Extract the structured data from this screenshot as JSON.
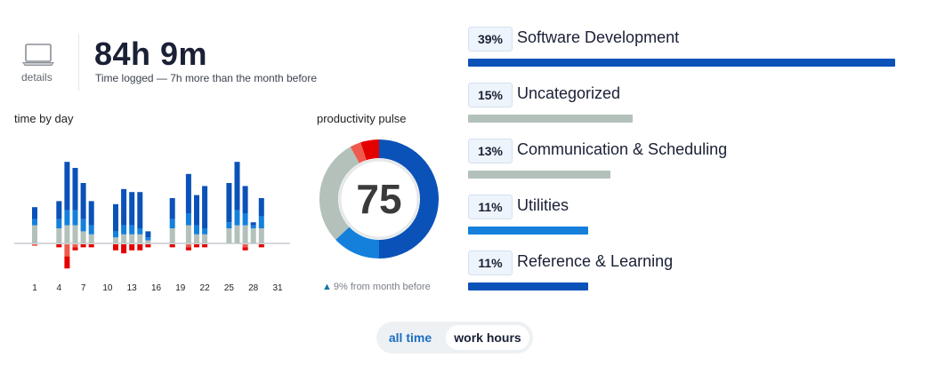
{
  "header": {
    "details_label": "details",
    "total_time": "84h 9m",
    "time_subtitle": "Time logged — 7h more than the month before"
  },
  "day_chart": {
    "title": "time by day",
    "x_labels": [
      "1",
      "4",
      "7",
      "10",
      "13",
      "16",
      "19",
      "22",
      "25",
      "28",
      "31"
    ]
  },
  "pulse": {
    "title": "productivity pulse",
    "score": "75",
    "trend_text": "9% from month before"
  },
  "categories": [
    {
      "percent": "39%",
      "name": "Software Development",
      "value": 39,
      "color": "#0a52b8"
    },
    {
      "percent": "15%",
      "name": "Uncategorized",
      "value": 15,
      "color": "#b3c1ba"
    },
    {
      "percent": "13%",
      "name": "Communication & Scheduling",
      "value": 13,
      "color": "#b3c1ba"
    },
    {
      "percent": "11%",
      "name": "Utilities",
      "value": 11,
      "color": "#1480dc"
    },
    {
      "percent": "11%",
      "name": "Reference & Learning",
      "value": 11,
      "color": "#0a52b8"
    }
  ],
  "toggle": {
    "all_time": "all time",
    "work_hours": "work hours"
  },
  "colors": {
    "very_productive": "#0a52b8",
    "productive": "#1480dc",
    "neutral": "#b3c1ba",
    "distracting": "#ee5a4e",
    "very_distracting": "#e50000"
  },
  "chart_data": [
    {
      "type": "bar",
      "title": "time by day",
      "x": [
        1,
        2,
        3,
        4,
        5,
        6,
        7,
        8,
        9,
        10,
        11,
        12,
        13,
        14,
        15,
        16,
        17,
        18,
        19,
        20,
        21,
        22,
        23,
        24,
        25,
        26,
        27,
        28,
        29,
        30,
        31
      ],
      "series": [
        {
          "values": [
            0.4,
            0,
            0,
            0.6,
            1.6,
            1.4,
            1.2,
            0.8,
            0,
            0,
            0.9,
            1.2,
            1.1,
            1.2,
            0.2,
            0,
            0,
            0.7,
            0,
            1.3,
            1.0,
            1.4,
            0,
            0,
            1.3,
            1.6,
            0.9,
            0.1,
            0.6,
            0,
            0
          ]
        },
        {
          "values": [
            0.2,
            0,
            0,
            0.3,
            0.5,
            0.5,
            0.4,
            0.3,
            0,
            0,
            0.2,
            0.3,
            0.3,
            0.2,
            0.1,
            0,
            0,
            0.3,
            0,
            0.4,
            0.3,
            0.2,
            0,
            0,
            0.2,
            0.5,
            0.4,
            0.1,
            0.4,
            0,
            0
          ]
        },
        {
          "values": [
            0.6,
            0,
            0,
            0.5,
            0.6,
            0.6,
            0.4,
            0.3,
            0,
            0,
            0.2,
            0.3,
            0.3,
            0.3,
            0.1,
            0,
            0,
            0.5,
            0,
            0.6,
            0.3,
            0.3,
            0,
            0,
            0.5,
            0.6,
            0.6,
            0.5,
            0.5,
            0,
            0
          ]
        },
        {
          "values": [
            0.05,
            0,
            0,
            0,
            0.4,
            0.1,
            0,
            0,
            0,
            0,
            0,
            0,
            0,
            0,
            0,
            0,
            0,
            0,
            0,
            0.1,
            0,
            0,
            0,
            0,
            0,
            0,
            0.1,
            0,
            0,
            0,
            0
          ]
        },
        {
          "values": [
            0,
            0,
            0,
            0.1,
            0.4,
            0.1,
            0.1,
            0.1,
            0,
            0,
            0.2,
            0.3,
            0.2,
            0.2,
            0.1,
            0,
            0,
            0.1,
            0,
            0.1,
            0.1,
            0.1,
            0,
            0,
            0,
            0,
            0.1,
            0,
            0.1,
            0,
            0
          ]
        }
      ]
    },
    {
      "type": "pie",
      "title": "productivity pulse",
      "values": [
        50,
        13,
        29,
        3,
        5
      ]
    }
  ]
}
